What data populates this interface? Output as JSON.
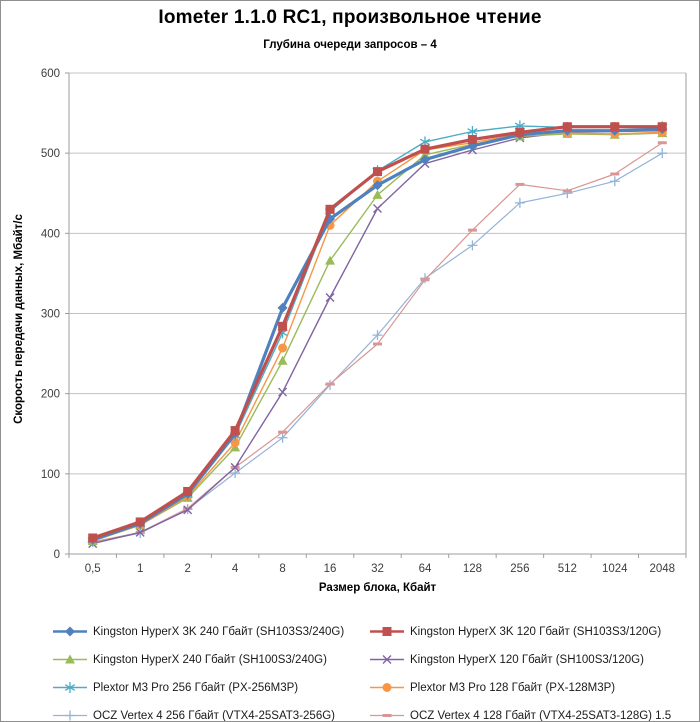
{
  "header": {
    "title": "Iometer 1.1.0 RC1, произвольное чтение",
    "subtitle": "Глубина очереди запросов – 4"
  },
  "chart_data": {
    "type": "line",
    "title": "Iometer 1.1.0 RC1, произвольное чтение",
    "subtitle": "Глубина очереди запросов – 4",
    "xlabel": "Размер блока, Кбайт",
    "ylabel": "Скорость передачи данных, Мбайт/с",
    "ylim": [
      0,
      600
    ],
    "yticks": [
      0,
      100,
      200,
      300,
      400,
      500,
      600
    ],
    "grid": "horizontal",
    "legend_position": "bottom",
    "categories": [
      "0,5",
      "1",
      "2",
      "4",
      "8",
      "16",
      "32",
      "64",
      "128",
      "256",
      "512",
      "1024",
      "2048"
    ],
    "series": [
      {
        "name": "kingston-hyperx-3k-240",
        "label": "Kingston HyperX 3K 240 Гбайт (SH103S3/240G)",
        "color": "#4F81BD",
        "marker": "diamond",
        "line_width": 3.2,
        "values": [
          18,
          38,
          75,
          150,
          307,
          418,
          460,
          492,
          509,
          523,
          528,
          528,
          530
        ]
      },
      {
        "name": "kingston-hyperx-3k-120",
        "label": "Kingston HyperX 3K 120 Гбайт (SH103S3/120G)",
        "color": "#C0504D",
        "marker": "square",
        "line_width": 3.2,
        "values": [
          20,
          40,
          78,
          154,
          284,
          430,
          477,
          505,
          517,
          526,
          533,
          533,
          533
        ]
      },
      {
        "name": "kingston-hyperx-240",
        "label": "Kingston HyperX 240 Гбайт (SH100S3/240G)",
        "color": "#9BBB59",
        "marker": "triangle",
        "line_width": 1.4,
        "values": [
          16,
          36,
          70,
          133,
          241,
          366,
          448,
          498,
          511,
          521,
          524,
          523,
          525
        ]
      },
      {
        "name": "kingston-hyperx-120",
        "label": "Kingston HyperX 120 Гбайт (SH100S3/120G)",
        "color": "#8064A2",
        "marker": "x",
        "line_width": 1.4,
        "values": [
          13,
          27,
          55,
          108,
          202,
          320,
          431,
          487,
          504,
          519,
          526,
          527,
          528
        ]
      },
      {
        "name": "plextor-m3-pro-256",
        "label": "Plextor M3 Pro 256 Гбайт (PX-256M3P)",
        "color": "#4BACC6",
        "marker": "asterisk",
        "line_width": 1.4,
        "values": [
          17,
          37,
          74,
          148,
          276,
          427,
          478,
          514,
          527,
          534,
          532,
          532,
          533
        ]
      },
      {
        "name": "plextor-m3-pro-128",
        "label": "Plextor M3 Pro 128 Гбайт (PX-128M3P)",
        "color": "#F79646",
        "marker": "circle",
        "line_width": 1.4,
        "values": [
          18,
          36,
          72,
          139,
          257,
          410,
          465,
          504,
          513,
          524,
          525,
          524,
          526
        ]
      },
      {
        "name": "ocz-vertex4-256",
        "label": "OCZ Vertex  4 256 Гбайт (VTX4-25SAT3-256G)",
        "color": "#95B3D7",
        "marker": "plus",
        "line_width": 1.2,
        "values": [
          15,
          26,
          56,
          101,
          145,
          211,
          273,
          344,
          385,
          438,
          450,
          465,
          500
        ]
      },
      {
        "name": "ocz-vertex4-128",
        "label": "OCZ Vertex  4 128 Гбайт (VTX4-25SAT3-128G) 1.5",
        "color": "#D99694",
        "marker": "dash",
        "line_width": 1.2,
        "values": [
          15,
          27,
          57,
          108,
          152,
          212,
          262,
          342,
          404,
          461,
          453,
          474,
          513
        ]
      }
    ]
  }
}
